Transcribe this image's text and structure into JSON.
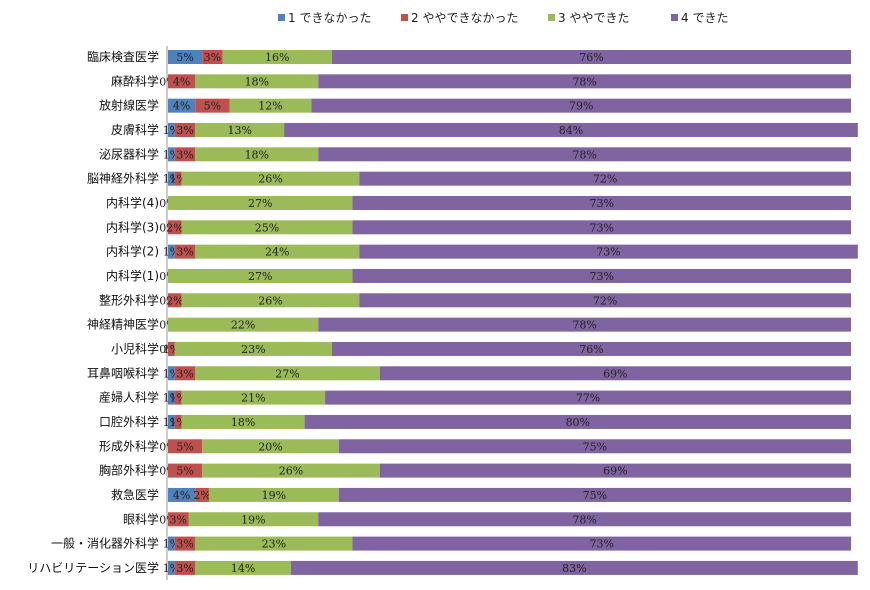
{
  "chart_data": {
    "type": "bar",
    "orientation": "horizontal",
    "stacked": "100%",
    "legend_position": "top",
    "grid": false,
    "xlim": [
      0,
      100
    ],
    "categories": [
      "臨床検査医学",
      "麻酔科学",
      "放射線医学",
      "皮膚科学",
      "泌尿器科学",
      "脳神経外科学",
      "内科学(4)",
      "内科学(3)",
      "内科学(2)",
      "内科学(1)",
      "整形外科学",
      "神経精神医学",
      "小児科学",
      "耳鼻咽喉科学",
      "産婦人科学",
      "口腔外科学",
      "形成外科学",
      "胸部外科学",
      "救急医学",
      "眼科学",
      "一般・消化器外科学",
      "リハビリテーション医学"
    ],
    "series": [
      {
        "name": "1 できなかった",
        "color": "#4f81bd",
        "values": [
          5,
          0,
          4,
          1,
          1,
          1,
          0,
          0,
          1,
          0,
          0,
          0,
          0,
          1,
          1,
          1,
          0,
          0,
          4,
          0,
          1,
          1
        ]
      },
      {
        "name": "2 ややできなかった",
        "color": "#c0504d",
        "values": [
          3,
          4,
          5,
          3,
          3,
          1,
          0,
          2,
          3,
          0,
          2,
          0,
          1,
          3,
          1,
          1,
          5,
          5,
          2,
          3,
          3,
          3
        ]
      },
      {
        "name": "3 ややできた",
        "color": "#9bbb59",
        "values": [
          16,
          18,
          12,
          13,
          18,
          26,
          27,
          25,
          24,
          27,
          26,
          22,
          23,
          27,
          21,
          18,
          20,
          26,
          19,
          19,
          23,
          14
        ]
      },
      {
        "name": "4 できた",
        "color": "#8064a2",
        "values": [
          76,
          78,
          79,
          84,
          78,
          72,
          73,
          73,
          73,
          73,
          72,
          78,
          76,
          69,
          77,
          80,
          75,
          69,
          75,
          78,
          73,
          83
        ]
      }
    ],
    "labels": [
      [
        "5%",
        "3%",
        "16%",
        "76%"
      ],
      [
        "0%",
        "4%",
        "18%",
        "78%"
      ],
      [
        "4%",
        "5%",
        "12%",
        "79%"
      ],
      [
        "1%",
        "3%",
        "13%",
        "84%"
      ],
      [
        "1%",
        "3%",
        "18%",
        "78%"
      ],
      [
        "1%",
        "1%",
        "26%",
        "72%"
      ],
      [
        "0%",
        "",
        "27%",
        "73%"
      ],
      [
        "0%",
        "2%",
        "25%",
        "73%"
      ],
      [
        "1%",
        "3%",
        "24%",
        "73%"
      ],
      [
        "0%",
        "",
        "27%",
        "73%"
      ],
      [
        "0%",
        "2%",
        "26%",
        "72%"
      ],
      [
        "0%",
        "",
        "22%",
        "78%"
      ],
      [
        "0%",
        "1%",
        "23%",
        "76%"
      ],
      [
        "1%",
        "3%",
        "27%",
        "69%"
      ],
      [
        "1%",
        "1%",
        "21%",
        "77%"
      ],
      [
        "1%",
        "1%",
        "18%",
        "80%"
      ],
      [
        "0%",
        "5%",
        "20%",
        "75%"
      ],
      [
        "0%",
        "5%",
        "26%",
        "69%"
      ],
      [
        "4%",
        "2%",
        "19%",
        "75%"
      ],
      [
        "0%",
        "3%",
        "19%",
        "78%"
      ],
      [
        "1%",
        "3%",
        "23%",
        "73%"
      ],
      [
        "1%",
        "3%",
        "14%",
        "83%"
      ]
    ]
  }
}
